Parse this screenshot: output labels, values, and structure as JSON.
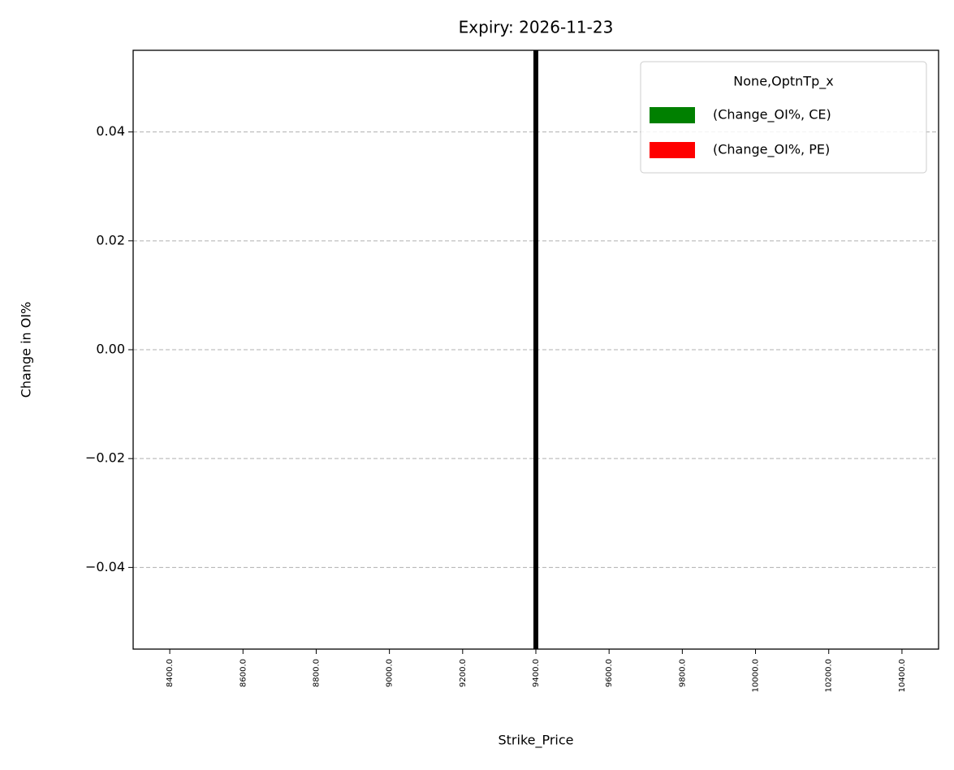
{
  "chart_data": {
    "type": "bar",
    "title": "Expiry: 2026-11-23",
    "x_label": "Strike_Price",
    "y_label": "Change in OI%",
    "categories": [
      "8400.0",
      "8600.0",
      "8800.0",
      "9000.0",
      "9200.0",
      "9400.0",
      "9600.0",
      "9800.0",
      "10000.0",
      "10200.0",
      "10400.0"
    ],
    "series": [
      {
        "name": "(Change_OI%, CE)",
        "color": "#008000",
        "values": [
          0,
          0,
          0,
          0,
          0,
          0,
          0,
          0,
          0,
          0,
          0
        ]
      },
      {
        "name": "(Change_OI%, PE)",
        "color": "#ff0000",
        "values": [
          0,
          0,
          0,
          0,
          0,
          0,
          0,
          0,
          0,
          0,
          0
        ]
      }
    ],
    "legend_title": "None,OptnTp_x",
    "legend": "upper right",
    "ylim": [
      -0.055,
      0.055
    ],
    "yticks": [
      {
        "value": -0.04,
        "label": "−0.04"
      },
      {
        "value": -0.02,
        "label": "−0.02"
      },
      {
        "value": 0,
        "label": "0.00"
      },
      {
        "value": 0.02,
        "label": "0.02"
      },
      {
        "value": 0.04,
        "label": "0.04"
      }
    ],
    "grid": "y",
    "vline": {
      "x": 9400,
      "color": "#000000"
    }
  }
}
